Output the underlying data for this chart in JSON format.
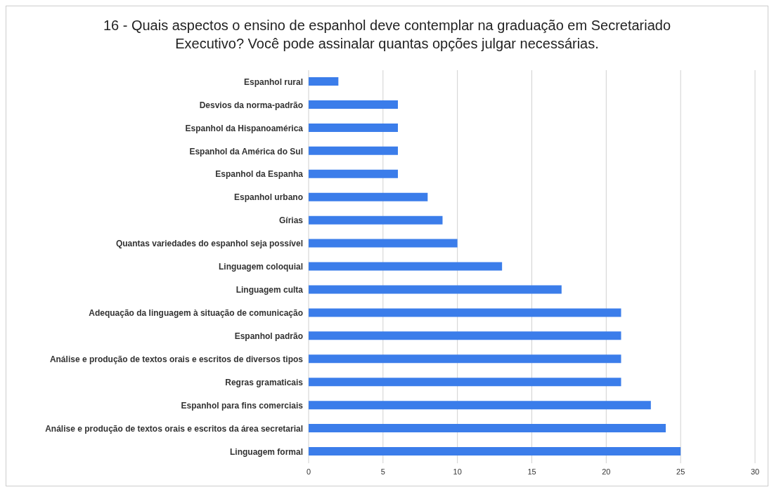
{
  "chart_data": {
    "type": "bar",
    "orientation": "horizontal",
    "title": "16 - Quais aspectos o ensino de espanhol deve contemplar na graduação em Secretariado Executivo? Você pode assinalar quantas opções julgar necessárias.",
    "categories": [
      "Espanhol rural",
      "Desvios da norma-padrão",
      "Espanhol da Hispanoamérica",
      "Espanhol da América do Sul",
      "Espanhol da Espanha",
      "Espanhol urbano",
      "Gírias",
      "Quantas variedades do espanhol seja possível",
      "Linguagem coloquial",
      "Linguagem culta",
      "Adequação da linguagem à situação de comunicação",
      "Espanhol padrão",
      "Análise e produção de textos orais e escritos de diversos tipos",
      "Regras gramaticais",
      "Espanhol para fins comerciais",
      "Análise e produção de textos orais e escritos da área secretarial",
      "Linguagem formal"
    ],
    "values": [
      2,
      6,
      6,
      6,
      6,
      8,
      9,
      10,
      13,
      17,
      21,
      21,
      21,
      21,
      23,
      24,
      25
    ],
    "color": "#3b7dea",
    "xlim": [
      0,
      30
    ],
    "xticks": [
      0,
      5,
      10,
      15,
      20,
      25,
      30
    ],
    "grid": "x"
  }
}
